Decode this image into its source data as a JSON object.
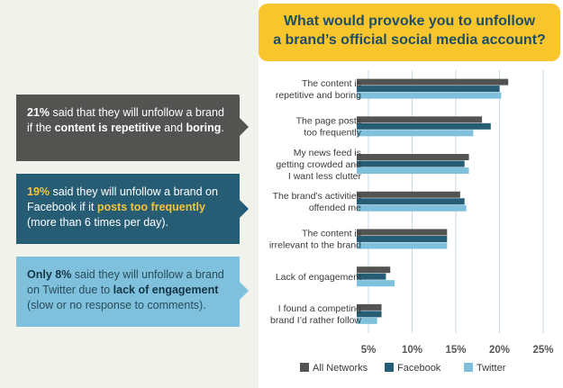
{
  "callouts": [
    {
      "pct": "21%",
      "pre": " said that they will unfollow a brand if the ",
      "highlight": "content is repetitive",
      "mid": " and ",
      "highlight2": "boring",
      "post": "."
    },
    {
      "pct": "19%",
      "pre": " said they will unfollow a brand on Facebook if it ",
      "highlight": "posts too frequently",
      "post": " (more than 6 times per day)."
    },
    {
      "pct": "Only 8%",
      "pre": " said they will unfollow a brand on Twitter due to ",
      "highlight": "lack of engagement",
      "post": " (slow or no response to comments)."
    }
  ],
  "chart_data": {
    "type": "bar",
    "orientation": "horizontal",
    "title": "What would provoke you to unfollow a brand’s official social media account?",
    "title_lines": [
      "What would provoke you to unfollow",
      "a brand’s official social media account?"
    ],
    "categories": [
      [
        "The content is",
        "repetitive and boring"
      ],
      [
        "The page posts",
        "too frequently"
      ],
      [
        "My news feed is",
        "getting crowded and",
        "I want less clutter"
      ],
      [
        "The brand’s activities",
        "offended me"
      ],
      [
        "The content is",
        "irrelevant to the brand"
      ],
      [
        "Lack of engagement"
      ],
      [
        "I found a competing",
        "brand I’d rather follow"
      ]
    ],
    "series": [
      {
        "name": "All Networks",
        "color": "#535352",
        "values": [
          21,
          18,
          16.5,
          15.5,
          14,
          7.5,
          6.5
        ]
      },
      {
        "name": "Facebook",
        "color": "#265d75",
        "values": [
          20,
          19,
          16,
          16,
          14,
          7,
          6.5
        ]
      },
      {
        "name": "Twitter",
        "color": "#7fc1dc",
        "values": [
          20.2,
          17,
          16.5,
          16.2,
          14,
          8,
          6
        ]
      }
    ],
    "xticks": [
      5,
      10,
      15,
      20,
      25
    ],
    "xtick_labels": [
      "5%",
      "10%",
      "15%",
      "20%",
      "25%"
    ],
    "xlim": [
      5,
      25
    ],
    "grid": true,
    "legend": "bottom"
  }
}
